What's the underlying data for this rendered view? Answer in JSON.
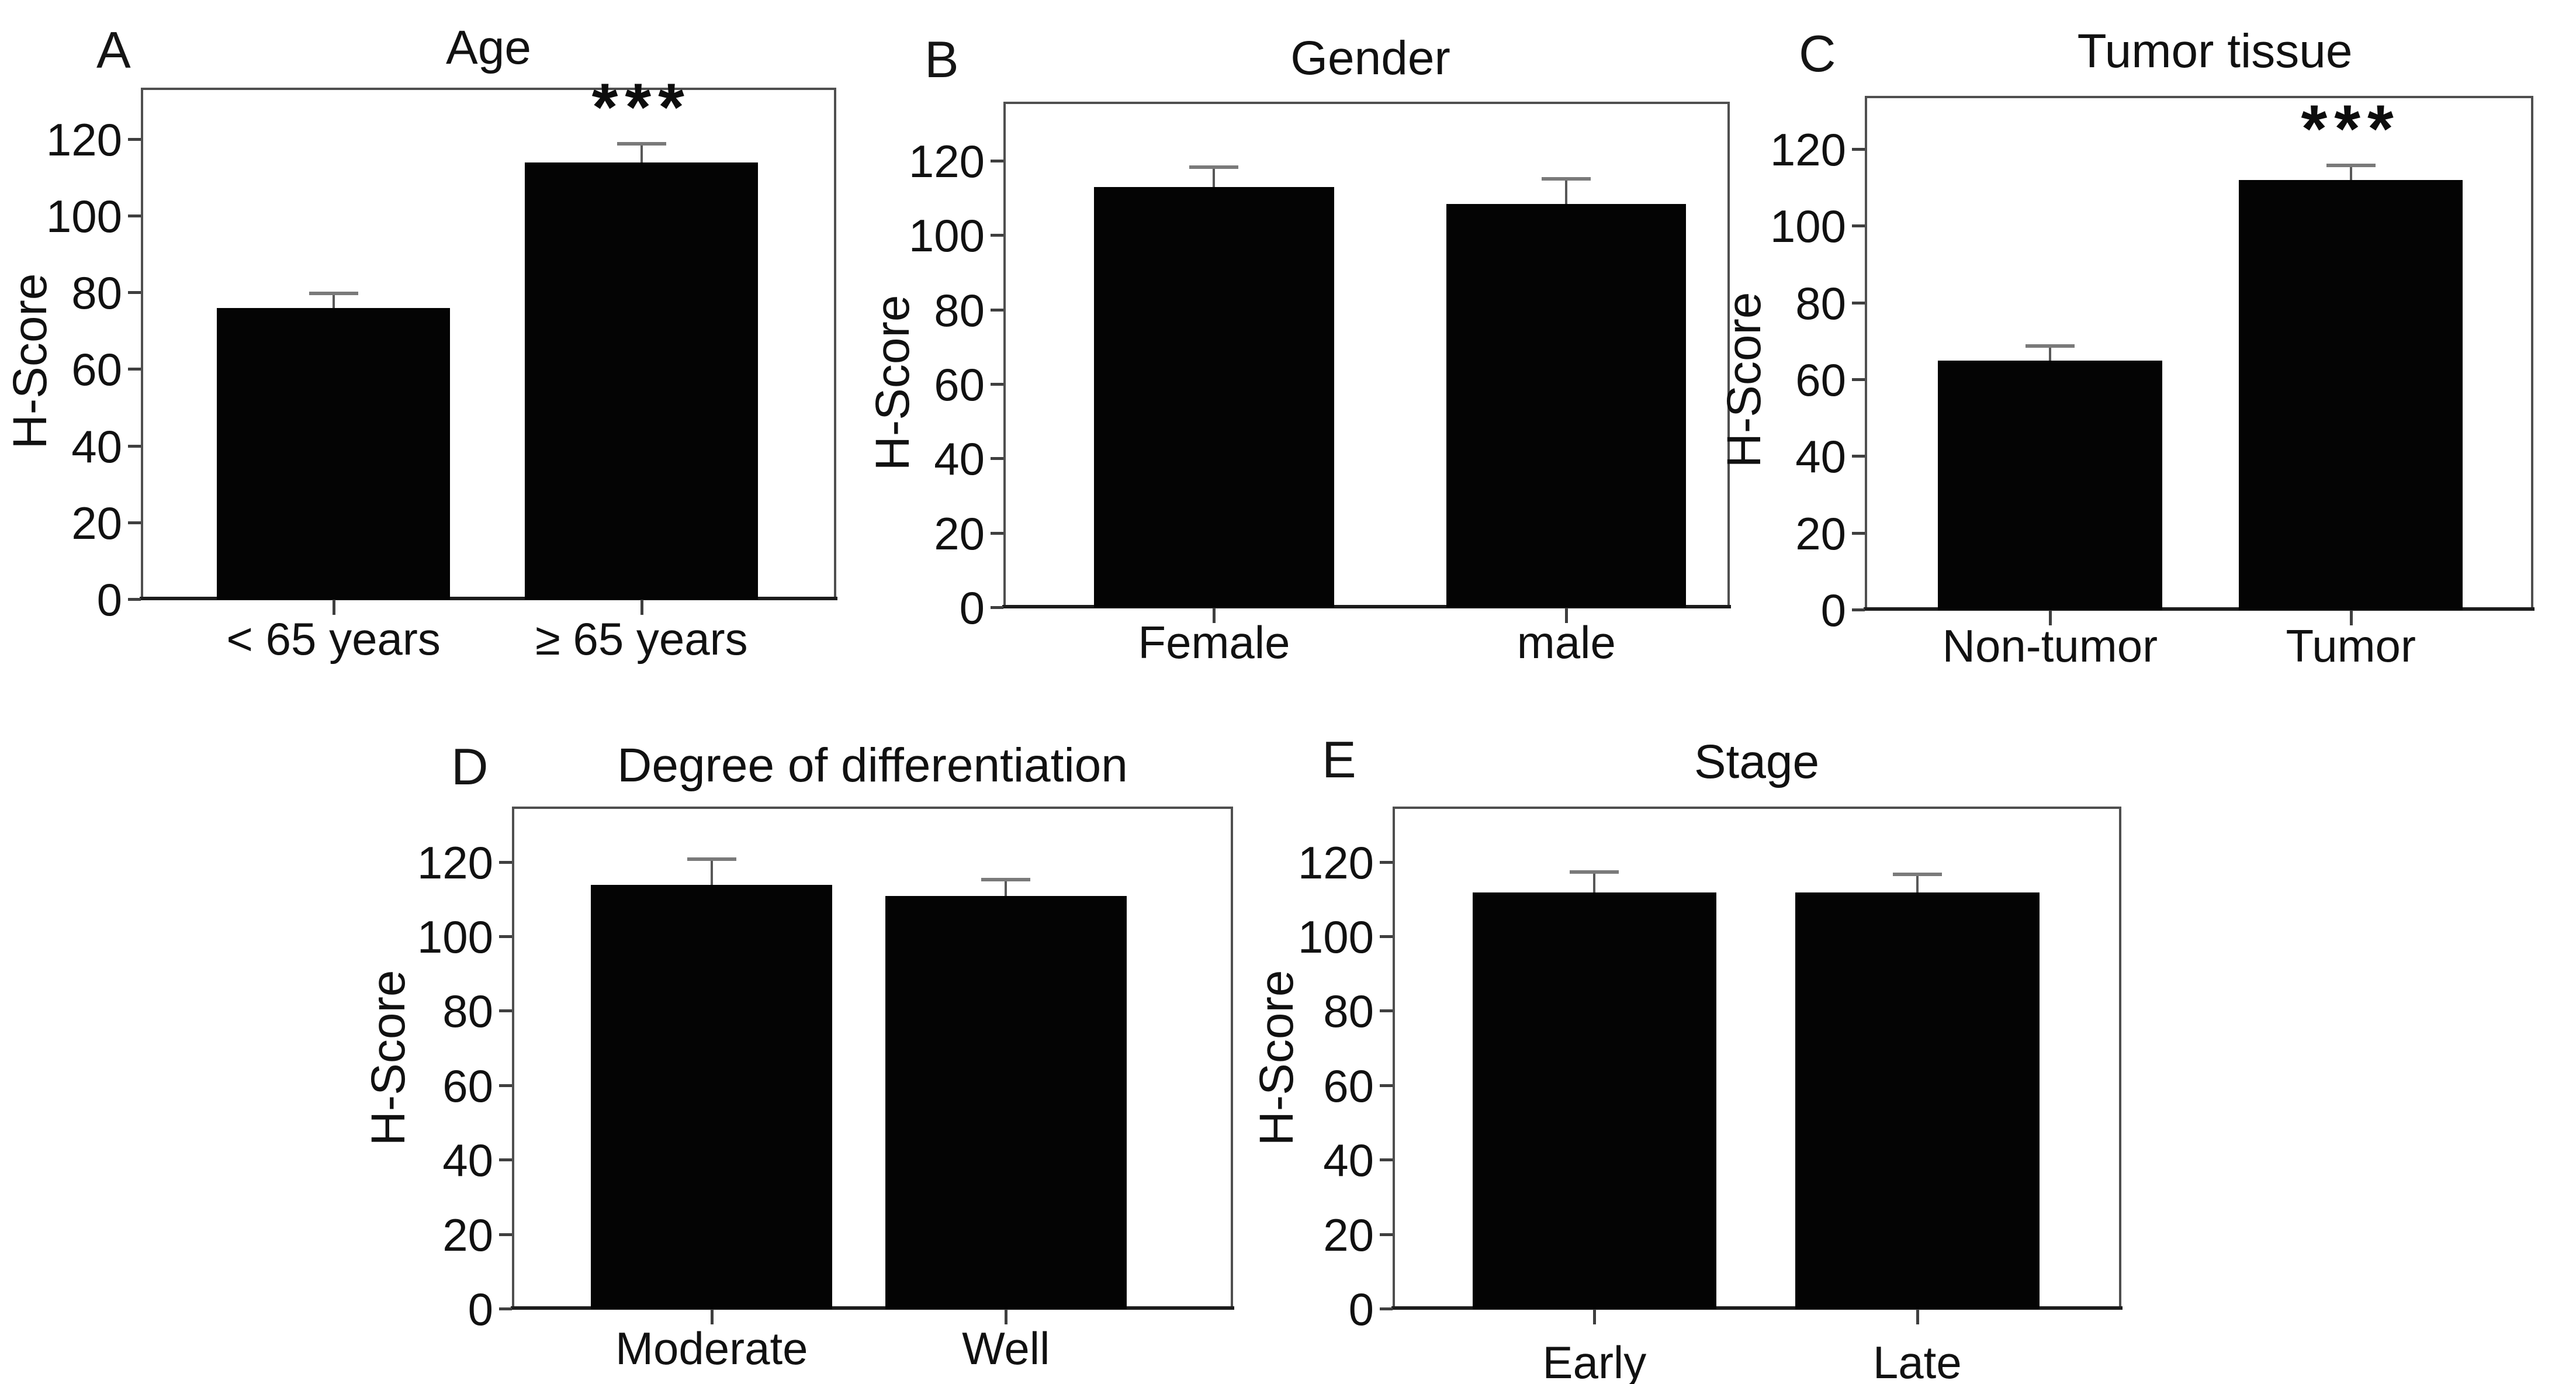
{
  "style": {
    "background": "#ffffff",
    "bar_color": "#040404",
    "error_bar_color": "#585858",
    "error_cap_color": "#7a7a7a",
    "frame_color": "#4f4f4f",
    "text_color": "#111111"
  },
  "chart_data": [
    {
      "type": "bar",
      "panel_label": "A",
      "title": "Age",
      "ylabel": "H-Score",
      "categories": [
        "< 65 years",
        "≥ 65 years"
      ],
      "values": [
        76,
        114
      ],
      "errors_plus": [
        4,
        5
      ],
      "significance": [
        "",
        "***"
      ],
      "yticks": [
        0,
        20,
        40,
        60,
        80,
        100,
        120
      ],
      "ylim": [
        0,
        133.5
      ],
      "grid": false,
      "legend": "none"
    },
    {
      "type": "bar",
      "panel_label": "B",
      "title": "Gender",
      "ylabel": "H-Score",
      "categories": [
        "Female",
        "male"
      ],
      "values": [
        113,
        108.5
      ],
      "errors_plus": [
        5.5,
        7
      ],
      "significance": [
        "",
        ""
      ],
      "yticks": [
        0,
        20,
        40,
        60,
        80,
        100,
        120
      ],
      "ylim": [
        0,
        136
      ],
      "grid": false,
      "legend": "none"
    },
    {
      "type": "bar",
      "panel_label": "C",
      "title": "Tumor tissue",
      "ylabel": "H-Score",
      "categories": [
        "Non-tumor",
        "Tumor"
      ],
      "values": [
        65,
        112
      ],
      "errors_plus": [
        4,
        4
      ],
      "significance": [
        "",
        "***"
      ],
      "yticks": [
        0,
        20,
        40,
        60,
        80,
        100,
        120
      ],
      "ylim": [
        0,
        134
      ],
      "grid": false,
      "legend": "none"
    },
    {
      "type": "bar",
      "panel_label": "D",
      "title": "Degree of differentiation",
      "ylabel": "H-Score",
      "categories": [
        "Moderate",
        "Well"
      ],
      "values": [
        114,
        111
      ],
      "errors_plus": [
        7,
        4.5
      ],
      "significance": [
        "",
        ""
      ],
      "yticks": [
        0,
        20,
        40,
        60,
        80,
        100,
        120
      ],
      "ylim": [
        0,
        135
      ],
      "grid": false,
      "legend": "none"
    },
    {
      "type": "bar",
      "panel_label": "E",
      "title": "Stage",
      "ylabel": "H-Score",
      "categories": [
        "Early",
        "Late"
      ],
      "values": [
        112,
        112
      ],
      "errors_plus": [
        5.5,
        5
      ],
      "significance": [
        "",
        ""
      ],
      "yticks": [
        0,
        20,
        40,
        60,
        80,
        100,
        120
      ],
      "ylim": [
        0,
        135
      ],
      "grid": false,
      "legend": "none"
    }
  ]
}
